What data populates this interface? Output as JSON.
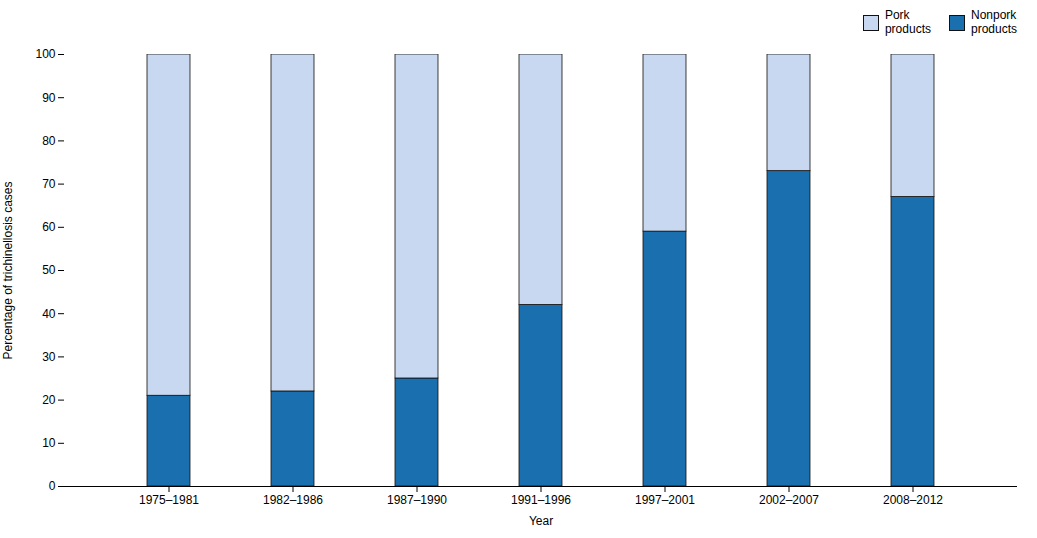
{
  "chart_data": {
    "type": "bar",
    "categories": [
      "1975–1981",
      "1982–1986",
      "1987–1990",
      "1991–1996",
      "1997–2001",
      "2002–2007",
      "2008–2012"
    ],
    "series": [
      {
        "name": "Nonpork\nproducts",
        "color": "#1a6faf",
        "values": [
          21,
          22,
          25,
          42,
          59,
          73,
          67
        ]
      },
      {
        "name": "Pork\nproducts",
        "color": "#c8d8f0",
        "values": [
          79,
          78,
          75,
          58,
          41,
          27,
          33
        ]
      }
    ],
    "xlabel": "Year",
    "ylabel": "Percentage of trichinellosis cases",
    "ylim": [
      0,
      100
    ],
    "yticks": [
      0,
      10,
      20,
      30,
      40,
      50,
      60,
      70,
      80,
      90,
      100
    ],
    "stacked": true,
    "grid": false,
    "legend": "upper right"
  }
}
